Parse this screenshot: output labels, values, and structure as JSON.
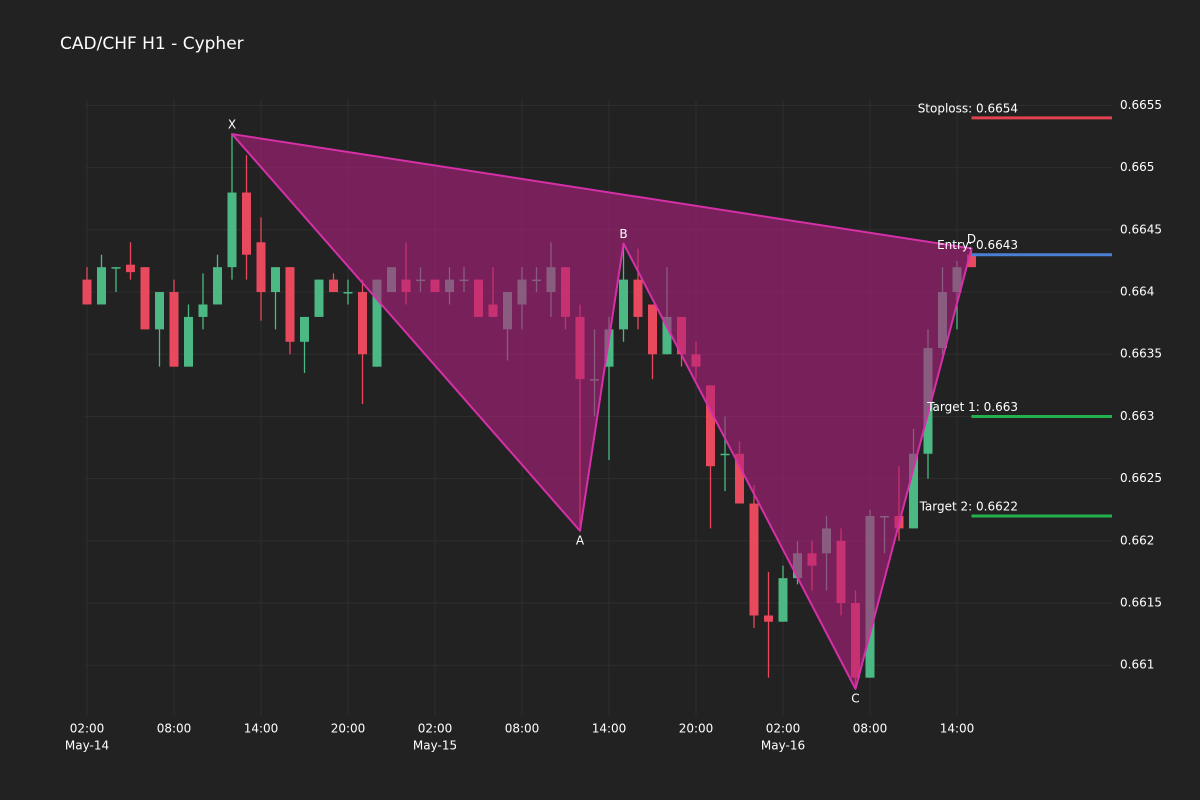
{
  "chart_data": {
    "type": "candlestick",
    "title": "CAD/CHF H1 - Cypher",
    "x": [
      "May-14 02:00",
      "May-14 03:00",
      "May-14 04:00",
      "May-14 05:00",
      "May-14 06:00",
      "May-14 07:00",
      "May-14 08:00",
      "May-14 09:00",
      "May-14 10:00",
      "May-14 11:00",
      "May-14 12:00",
      "May-14 13:00",
      "May-14 14:00",
      "May-14 15:00",
      "May-14 16:00",
      "May-14 17:00",
      "May-14 18:00",
      "May-14 19:00",
      "May-14 20:00",
      "May-14 21:00",
      "May-14 22:00",
      "May-14 23:00",
      "May-15 00:00",
      "May-15 01:00",
      "May-15 02:00",
      "May-15 03:00",
      "May-15 04:00",
      "May-15 05:00",
      "May-15 06:00",
      "May-15 07:00",
      "May-15 08:00",
      "May-15 09:00",
      "May-15 10:00",
      "May-15 11:00",
      "May-15 12:00",
      "May-15 13:00",
      "May-15 14:00",
      "May-15 15:00",
      "May-15 16:00",
      "May-15 17:00",
      "May-15 18:00",
      "May-15 19:00",
      "May-15 20:00",
      "May-15 21:00",
      "May-15 22:00",
      "May-15 23:00",
      "May-16 00:00",
      "May-16 01:00",
      "May-16 02:00",
      "May-16 03:00",
      "May-16 04:00",
      "May-16 05:00",
      "May-16 06:00",
      "May-16 07:00",
      "May-16 08:00",
      "May-16 09:00",
      "May-16 10:00",
      "May-16 11:00",
      "May-16 12:00",
      "May-16 13:00",
      "May-16 14:00",
      "May-16 15:00"
    ],
    "open": [
      0.6641,
      0.6639,
      0.6642,
      0.66422,
      0.6642,
      0.6637,
      0.664,
      0.6634,
      0.6638,
      0.6639,
      0.6642,
      0.6648,
      0.6644,
      0.664,
      0.6642,
      0.6636,
      0.6638,
      0.6641,
      0.664,
      0.664,
      0.6634,
      0.664,
      0.6641,
      0.6641,
      0.6641,
      0.664,
      0.6641,
      0.6641,
      0.6639,
      0.6637,
      0.6639,
      0.6641,
      0.664,
      0.6642,
      0.6638,
      0.6633,
      0.6634,
      0.6637,
      0.6641,
      0.6639,
      0.6635,
      0.6638,
      0.6635,
      0.66325,
      0.6627,
      0.6627,
      0.6623,
      0.6614,
      0.66135,
      0.6617,
      0.6619,
      0.6619,
      0.662,
      0.6615,
      0.6609,
      0.6622,
      0.6622,
      0.6621,
      0.6627,
      0.66355,
      0.664,
      0.6643
    ],
    "high": [
      0.6642,
      0.6643,
      0.6642,
      0.6644,
      0.6642,
      0.664,
      0.6641,
      0.6639,
      0.66415,
      0.6643,
      0.66527,
      0.6651,
      0.6646,
      0.6642,
      0.6642,
      0.6638,
      0.6641,
      0.66415,
      0.6641,
      0.6641,
      0.6641,
      0.6642,
      0.6644,
      0.6642,
      0.6641,
      0.6642,
      0.6642,
      0.6641,
      0.6642,
      0.664,
      0.6642,
      0.6642,
      0.6644,
      0.6642,
      0.6639,
      0.6637,
      0.6638,
      0.66439,
      0.66435,
      0.6639,
      0.6642,
      0.6638,
      0.6636,
      0.66325,
      0.663,
      0.6628,
      0.66245,
      0.66175,
      0.6618,
      0.662,
      0.662,
      0.6622,
      0.6621,
      0.6616,
      0.66225,
      0.6622,
      0.6626,
      0.6629,
      0.6637,
      0.6642,
      0.66425,
      0.66435
    ],
    "low": [
      0.6639,
      0.6639,
      0.664,
      0.6641,
      0.6637,
      0.6634,
      0.6634,
      0.6634,
      0.6637,
      0.6639,
      0.6641,
      0.6641,
      0.66377,
      0.6637,
      0.6635,
      0.66335,
      0.6638,
      0.664,
      0.6639,
      0.6631,
      0.6634,
      0.664,
      0.6639,
      0.664,
      0.664,
      0.6639,
      0.664,
      0.6638,
      0.6638,
      0.66345,
      0.6637,
      0.664,
      0.6638,
      0.6637,
      0.66208,
      0.663,
      0.66265,
      0.6636,
      0.6637,
      0.6633,
      0.6635,
      0.6634,
      0.6633,
      0.6621,
      0.6624,
      0.6623,
      0.6613,
      0.6609,
      0.66135,
      0.66165,
      0.6616,
      0.6616,
      0.6614,
      0.66081,
      0.6609,
      0.6619,
      0.662,
      0.6621,
      0.6625,
      0.6635,
      0.6637,
      0.6642
    ],
    "close": [
      0.6639,
      0.6642,
      0.6642,
      0.66416,
      0.6637,
      0.664,
      0.6634,
      0.6638,
      0.6639,
      0.6642,
      0.6648,
      0.6643,
      0.664,
      0.6642,
      0.6636,
      0.6638,
      0.6641,
      0.664,
      0.664,
      0.6635,
      0.6641,
      0.6642,
      0.664,
      0.6641,
      0.664,
      0.6641,
      0.6641,
      0.6638,
      0.6638,
      0.664,
      0.6641,
      0.6641,
      0.6642,
      0.6638,
      0.6633,
      0.6633,
      0.6637,
      0.6641,
      0.6638,
      0.6635,
      0.6638,
      0.6635,
      0.6634,
      0.6626,
      0.6627,
      0.6623,
      0.6614,
      0.66135,
      0.6617,
      0.6619,
      0.6618,
      0.6621,
      0.6615,
      0.6609,
      0.6622,
      0.6622,
      0.6621,
      0.6627,
      0.66355,
      0.664,
      0.6642,
      0.6642
    ],
    "up_color": "#4cb883",
    "down_color": "#e8495d",
    "ylim": [
      0.6606,
      0.6656
    ],
    "yticks": [
      0.661,
      0.6615,
      0.662,
      0.6625,
      0.663,
      0.6635,
      0.664,
      0.6645,
      0.665,
      0.6655
    ],
    "xticks": [
      {
        "value": "May-14 02:00",
        "label": "02:00"
      },
      {
        "value": "May-14 08:00",
        "label": "08:00"
      },
      {
        "value": "May-14 14:00",
        "label": "14:00"
      },
      {
        "value": "May-14 20:00",
        "label": "20:00"
      },
      {
        "value": "May-15 02:00",
        "label": "02:00"
      },
      {
        "value": "May-15 08:00",
        "label": "08:00"
      },
      {
        "value": "May-15 14:00",
        "label": "14:00"
      },
      {
        "value": "May-15 20:00",
        "label": "20:00"
      },
      {
        "value": "May-16 02:00",
        "label": "02:00"
      },
      {
        "value": "May-16 08:00",
        "label": "08:00"
      },
      {
        "value": "May-16 14:00",
        "label": "14:00"
      }
    ],
    "xtick_dates": [
      {
        "value": "May-14 02:00",
        "label": "May-14"
      },
      {
        "value": "May-15 02:00",
        "label": "May-15"
      },
      {
        "value": "May-16 02:00",
        "label": "May-16"
      }
    ],
    "grid": true,
    "pattern": {
      "fill": "#b0207f",
      "stroke": "#d630a8",
      "points": [
        {
          "label": "X",
          "x": "May-14 12:00",
          "y": 0.66527,
          "position": "above"
        },
        {
          "label": "A",
          "x": "May-15 12:00",
          "y": 0.66208,
          "position": "below"
        },
        {
          "label": "B",
          "x": "May-15 15:00",
          "y": 0.66439,
          "position": "above"
        },
        {
          "label": "C",
          "x": "May-16 07:00",
          "y": 0.66081,
          "position": "below"
        },
        {
          "label": "D",
          "x": "May-16 15:00",
          "y": 0.66435,
          "position": "above"
        }
      ]
    },
    "levels": [
      {
        "label": "Stoploss: 0.6654",
        "value": 0.6654,
        "color": "#e0434f"
      },
      {
        "label": "Entry: 0.6643",
        "value": 0.6643,
        "color": "#4a7fd6"
      },
      {
        "label": "Target 1: 0.663",
        "value": 0.663,
        "color": "#22b14c"
      },
      {
        "label": "Target 2: 0.6622",
        "value": 0.6622,
        "color": "#22b14c"
      }
    ]
  }
}
